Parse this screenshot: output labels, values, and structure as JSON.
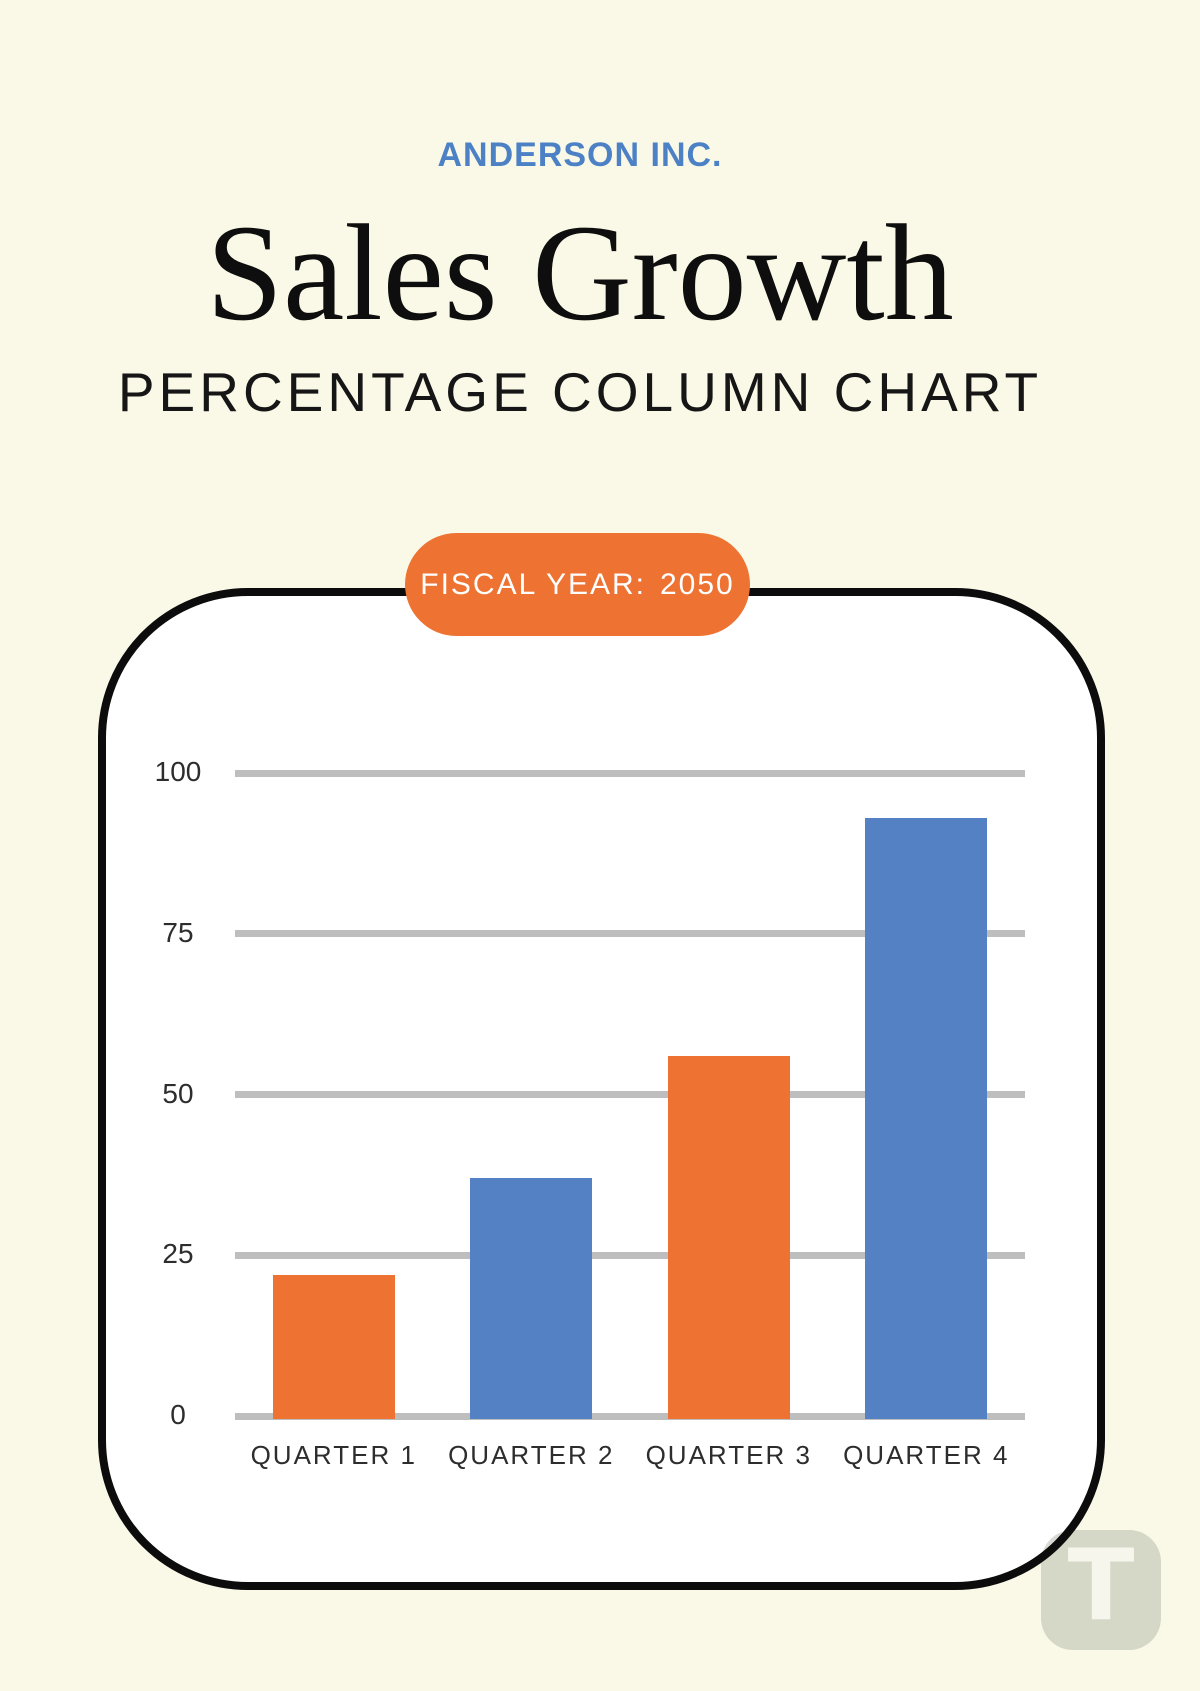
{
  "page": {
    "background_color": "#FAF9E7",
    "accent_orange": "#EE7231",
    "accent_blue": "#5480C4",
    "card_border_color": "#0C0C0C",
    "card_background": "#FFFFFF"
  },
  "header": {
    "company": "ANDERSON INC.",
    "company_color": "#4D81C6",
    "title": "Sales Growth",
    "subtitle": "PERCENTAGE COLUMN CHART"
  },
  "badge": {
    "label": "FISCAL YEAR:",
    "year": "2050",
    "background": "#EE7231",
    "text_color": "#FFFFFF"
  },
  "chart_data": {
    "type": "bar",
    "title": "Sales Growth",
    "subtitle": "PERCENTAGE COLUMN CHART",
    "annotation": "FISCAL YEAR: 2050",
    "categories": [
      "QUARTER 1",
      "QUARTER 2",
      "QUARTER 3",
      "QUARTER 4"
    ],
    "values": [
      22,
      37,
      56,
      93
    ],
    "bar_colors": [
      "#EE7231",
      "#5480C4",
      "#EE7231",
      "#5480C4"
    ],
    "y_ticks": [
      0,
      25,
      50,
      75,
      100
    ],
    "ylim": [
      0,
      100
    ],
    "xlabel": "",
    "ylabel": "",
    "grid": true,
    "gridline_color": "#BEBEBE",
    "legend": "none"
  },
  "watermark": {
    "letter": "T"
  }
}
